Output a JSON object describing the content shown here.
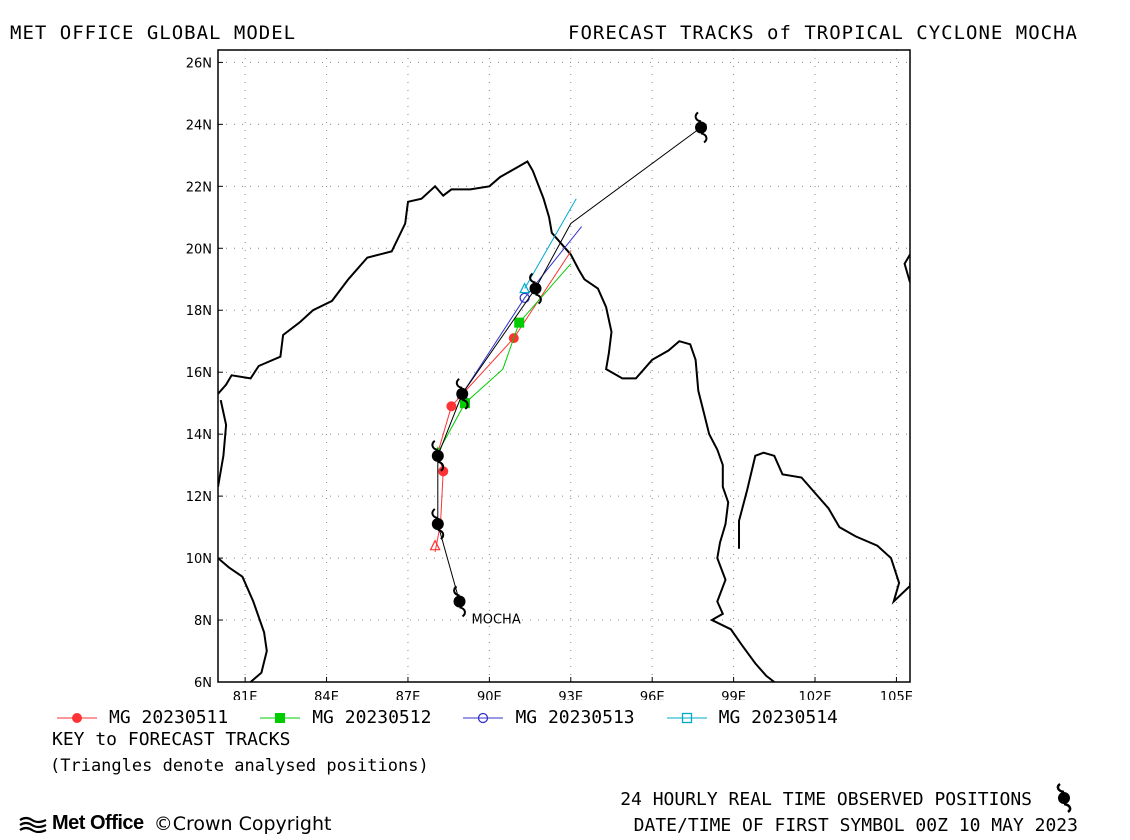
{
  "header": {
    "left_title": "MET OFFICE GLOBAL MODEL",
    "right_title": "FORECAST TRACKS of TROPICAL CYCLONE MOCHA"
  },
  "map": {
    "lon_range": [
      80,
      105.5
    ],
    "lat_range": [
      6,
      26.4
    ],
    "lon_ticks": [
      {
        "value": 81,
        "label": "81E"
      },
      {
        "value": 84,
        "label": "84E"
      },
      {
        "value": 87,
        "label": "87E"
      },
      {
        "value": 90,
        "label": "90E"
      },
      {
        "value": 93,
        "label": "93E"
      },
      {
        "value": 96,
        "label": "96E"
      },
      {
        "value": 99,
        "label": "99E"
      },
      {
        "value": 102,
        "label": "102E"
      },
      {
        "value": 105,
        "label": "105E"
      }
    ],
    "lat_ticks": [
      {
        "value": 6,
        "label": "6N"
      },
      {
        "value": 8,
        "label": "8N"
      },
      {
        "value": 10,
        "label": "10N"
      },
      {
        "value": 12,
        "label": "12N"
      },
      {
        "value": 14,
        "label": "14N"
      },
      {
        "value": 16,
        "label": "16N"
      },
      {
        "value": 18,
        "label": "18N"
      },
      {
        "value": 20,
        "label": "20N"
      },
      {
        "value": 22,
        "label": "22N"
      },
      {
        "value": 24,
        "label": "24N"
      },
      {
        "value": 26,
        "label": "26N"
      }
    ],
    "grid": true,
    "storm_label": "MOCHA",
    "observed_track": [
      [
        88.9,
        8.6
      ],
      [
        88.1,
        11.1
      ],
      [
        88.1,
        13.3
      ],
      [
        89.0,
        15.3
      ],
      [
        91.7,
        18.7
      ],
      [
        97.8,
        23.9
      ]
    ],
    "observed_track_extra": [
      [
        93.0,
        20.8
      ]
    ],
    "observed_color": "#000000",
    "coastlines": [
      [
        [
          80,
          15.3
        ],
        [
          80.3,
          15.6
        ],
        [
          80.5,
          15.9
        ],
        [
          81.2,
          15.8
        ],
        [
          81.5,
          16.2
        ],
        [
          82.3,
          16.5
        ],
        [
          82.4,
          17.2
        ],
        [
          83.0,
          17.6
        ],
        [
          83.5,
          18.0
        ],
        [
          84.2,
          18.3
        ],
        [
          84.8,
          19.0
        ],
        [
          85.5,
          19.7
        ],
        [
          86.4,
          19.9
        ],
        [
          86.9,
          20.8
        ],
        [
          87.0,
          21.5
        ],
        [
          87.5,
          21.6
        ],
        [
          88.0,
          22.0
        ],
        [
          88.3,
          21.7
        ],
        [
          88.6,
          21.9
        ],
        [
          89.3,
          21.9
        ],
        [
          90.0,
          22.0
        ],
        [
          90.4,
          22.3
        ],
        [
          91.0,
          22.6
        ],
        [
          91.4,
          22.8
        ],
        [
          91.6,
          22.5
        ],
        [
          92.0,
          21.6
        ],
        [
          92.2,
          21.0
        ],
        [
          92.3,
          20.5
        ],
        [
          92.7,
          20.1
        ],
        [
          93.0,
          19.8
        ],
        [
          93.3,
          19.3
        ],
        [
          93.5,
          19.0
        ],
        [
          94.0,
          18.7
        ],
        [
          94.3,
          18.1
        ],
        [
          94.5,
          17.3
        ],
        [
          94.4,
          16.6
        ],
        [
          94.3,
          16.1
        ],
        [
          94.9,
          15.8
        ],
        [
          95.4,
          15.8
        ],
        [
          96.0,
          16.4
        ],
        [
          96.6,
          16.7
        ],
        [
          97.0,
          17.0
        ],
        [
          97.4,
          16.9
        ],
        [
          97.6,
          16.4
        ],
        [
          97.7,
          15.4
        ],
        [
          97.9,
          14.7
        ],
        [
          98.1,
          14.0
        ],
        [
          98.4,
          13.5
        ],
        [
          98.6,
          13.0
        ],
        [
          98.6,
          12.3
        ],
        [
          98.8,
          11.8
        ],
        [
          98.7,
          11.1
        ],
        [
          98.5,
          10.5
        ],
        [
          98.4,
          10.0
        ],
        [
          98.7,
          9.3
        ],
        [
          98.4,
          8.6
        ],
        [
          98.6,
          8.2
        ],
        [
          98.2,
          8.0
        ],
        [
          98.9,
          7.7
        ],
        [
          99.3,
          7.2
        ],
        [
          99.8,
          6.6
        ],
        [
          100.2,
          6.2
        ],
        [
          100.5,
          6.0
        ]
      ],
      [
        [
          80,
          10.0
        ],
        [
          80.4,
          9.7
        ],
        [
          80.9,
          9.4
        ],
        [
          81.3,
          8.6
        ],
        [
          81.7,
          7.6
        ],
        [
          81.8,
          7.0
        ],
        [
          81.6,
          6.3
        ],
        [
          81.2,
          6.0
        ]
      ],
      [
        [
          80,
          12.3
        ],
        [
          80.2,
          13.3
        ],
        [
          80.3,
          14.3
        ],
        [
          80.1,
          15.1
        ]
      ],
      [
        [
          105.5,
          19.8
        ],
        [
          105.3,
          19.5
        ],
        [
          105.5,
          18.9
        ]
      ],
      [
        [
          99.2,
          10.3
        ],
        [
          99.2,
          11.2
        ],
        [
          99.5,
          12.2
        ],
        [
          99.8,
          13.3
        ],
        [
          100.1,
          13.4
        ],
        [
          100.5,
          13.3
        ],
        [
          100.8,
          12.7
        ],
        [
          101.5,
          12.6
        ],
        [
          101.9,
          12.2
        ],
        [
          102.5,
          11.6
        ],
        [
          102.9,
          11.0
        ],
        [
          103.5,
          10.7
        ],
        [
          104.3,
          10.4
        ],
        [
          104.8,
          10.0
        ],
        [
          105.1,
          9.2
        ],
        [
          104.9,
          8.6
        ],
        [
          105.5,
          9.1
        ],
        [
          105.5,
          9.2
        ]
      ]
    ],
    "forecasts": [
      {
        "name": "MG 20230511",
        "color": "#ff3333",
        "marker": "filled-circle",
        "track": [
          [
            88.0,
            10.2
          ],
          [
            88.2,
            11.1
          ],
          [
            88.3,
            12.8
          ],
          [
            88.1,
            13.4
          ],
          [
            88.6,
            14.9
          ],
          [
            90.9,
            17.1
          ],
          [
            93.0,
            19.9
          ]
        ],
        "markers": [
          [
            88.3,
            12.8
          ],
          [
            88.6,
            14.9
          ],
          [
            90.9,
            17.1
          ]
        ],
        "analysed": [
          88.0,
          10.4
        ]
      },
      {
        "name": "MG 20230512",
        "color": "#00cc00",
        "marker": "filled-square",
        "track": [
          [
            88.1,
            13.4
          ],
          [
            89.1,
            15.0
          ],
          [
            90.5,
            16.1
          ],
          [
            91.1,
            17.6
          ],
          [
            93.0,
            19.5
          ]
        ],
        "markers": [
          [
            89.1,
            15.0
          ],
          [
            91.1,
            17.6
          ]
        ],
        "analysed": [
          88.1,
          13.4
        ]
      },
      {
        "name": "MG 20230513",
        "color": "#3333cc",
        "marker": "open-circle",
        "track": [
          [
            89.0,
            15.3
          ],
          [
            91.3,
            18.4
          ],
          [
            93.4,
            20.7
          ]
        ],
        "markers": [
          [
            91.3,
            18.4
          ]
        ],
        "analysed": [
          89.0,
          15.3
        ]
      },
      {
        "name": "MG 20230514",
        "color": "#00aacc",
        "marker": "open-square",
        "track": [
          [
            91.3,
            18.7
          ],
          [
            93.2,
            21.6
          ]
        ],
        "markers": [],
        "analysed": [
          91.3,
          18.7
        ]
      }
    ]
  },
  "legend": {
    "key_title": "KEY to FORECAST TRACKS",
    "key_note": "(Triangles denote analysed positions)"
  },
  "footer": {
    "observed_note": "24 HOURLY REAL TIME OBSERVED POSITIONS",
    "first_symbol": "DATE/TIME OF FIRST SYMBOL 00Z 10 MAY 2023",
    "brand": "Met Office",
    "copyright": "Crown Copyright"
  },
  "icons": {
    "storm_symbol": "cyclone-icon",
    "brand_logo": "met-office-wave-icon"
  }
}
